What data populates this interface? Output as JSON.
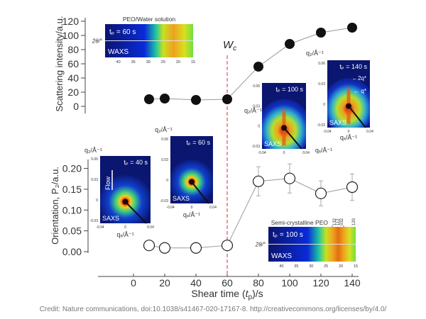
{
  "chart_data": [
    {
      "type": "line",
      "panel": "top",
      "ylabel": "Scattering intensity/a.u.",
      "ylim": [
        -10,
        120
      ],
      "yticks": [
        0,
        20,
        40,
        60,
        80,
        100,
        120
      ],
      "marker": "filled-circle",
      "x": [
        10,
        20,
        40,
        60,
        80,
        100,
        120,
        140
      ],
      "values": [
        10,
        11,
        9,
        10,
        56,
        88,
        104,
        111
      ]
    },
    {
      "type": "line",
      "panel": "bottom",
      "ylabel": "Orientation, P₂/a.u.",
      "ylim": [
        0,
        0.22
      ],
      "yticks": [
        "0.00",
        "0.05",
        "0.10",
        "0.15",
        "0.20"
      ],
      "marker": "open-circle",
      "x": [
        10,
        20,
        40,
        60,
        80,
        100,
        120,
        140
      ],
      "values": [
        0.015,
        0.009,
        0.009,
        0.015,
        0.169,
        0.176,
        0.14,
        0.155
      ],
      "errors": [
        0,
        0,
        0,
        0,
        0.035,
        0.035,
        0.03,
        0.032
      ]
    }
  ],
  "xaxis": {
    "label_pre": "Shear time (",
    "label_t": "t",
    "label_sub": "p",
    "label_post": ")/s",
    "xlim": [
      -20,
      145
    ],
    "ticks": [
      0,
      20,
      40,
      60,
      80,
      100,
      120,
      140
    ]
  },
  "critical_line": {
    "x": 60,
    "label": "W",
    "label_sub": "c",
    "color": "#d9545c"
  },
  "insets": {
    "waxs_top": {
      "title": "PEO/Water solution",
      "time": "tₚ = 60 s",
      "tag": "WAXS",
      "axis": "2θ/°",
      "ticks": [
        "40",
        "35",
        "30",
        "25",
        "20",
        "15"
      ]
    },
    "waxs_bottom": {
      "title": "Semi-crystalline PEO",
      "time": "tₚ = 100 s",
      "tag": "WAXS",
      "axis": "2θ/°",
      "ticks": [
        "40",
        "35",
        "30",
        "25",
        "20",
        "15"
      ],
      "peaks": [
        "132",
        "112",
        "032",
        "120"
      ]
    },
    "saxs": [
      {
        "time": "tₚ = 40 s",
        "tag": "SAXS",
        "flow": "Flow",
        "qz": "q₂/Å⁻¹",
        "qx": "qₓ/Å⁻¹"
      },
      {
        "time": "tₚ = 60 s",
        "tag": "SAXS",
        "qz": "q₂/Å⁻¹",
        "qx": "qₓ/Å⁻¹"
      },
      {
        "time": "tₚ = 100 s",
        "tag": "SAXS",
        "qz": "q₂/Å⁻¹",
        "qx": "qₓ/Å⁻¹"
      },
      {
        "time": "tₚ = 140 s",
        "tag": "SAXS",
        "qz": "q₂/Å⁻¹",
        "qx": "qₓ/Å⁻¹",
        "notes": [
          "←2q*",
          "← q*"
        ]
      }
    ],
    "saxs_yticks": [
      "0.06",
      "0.03",
      "0",
      "-0.03"
    ],
    "saxs_xticks": [
      "-0.04",
      "0",
      "0.04"
    ]
  },
  "credit": "Credit: Nature communications, doi:10.1038/s41467-020-17167-8. http://creativecommons.org/licenses/by/4.0/"
}
